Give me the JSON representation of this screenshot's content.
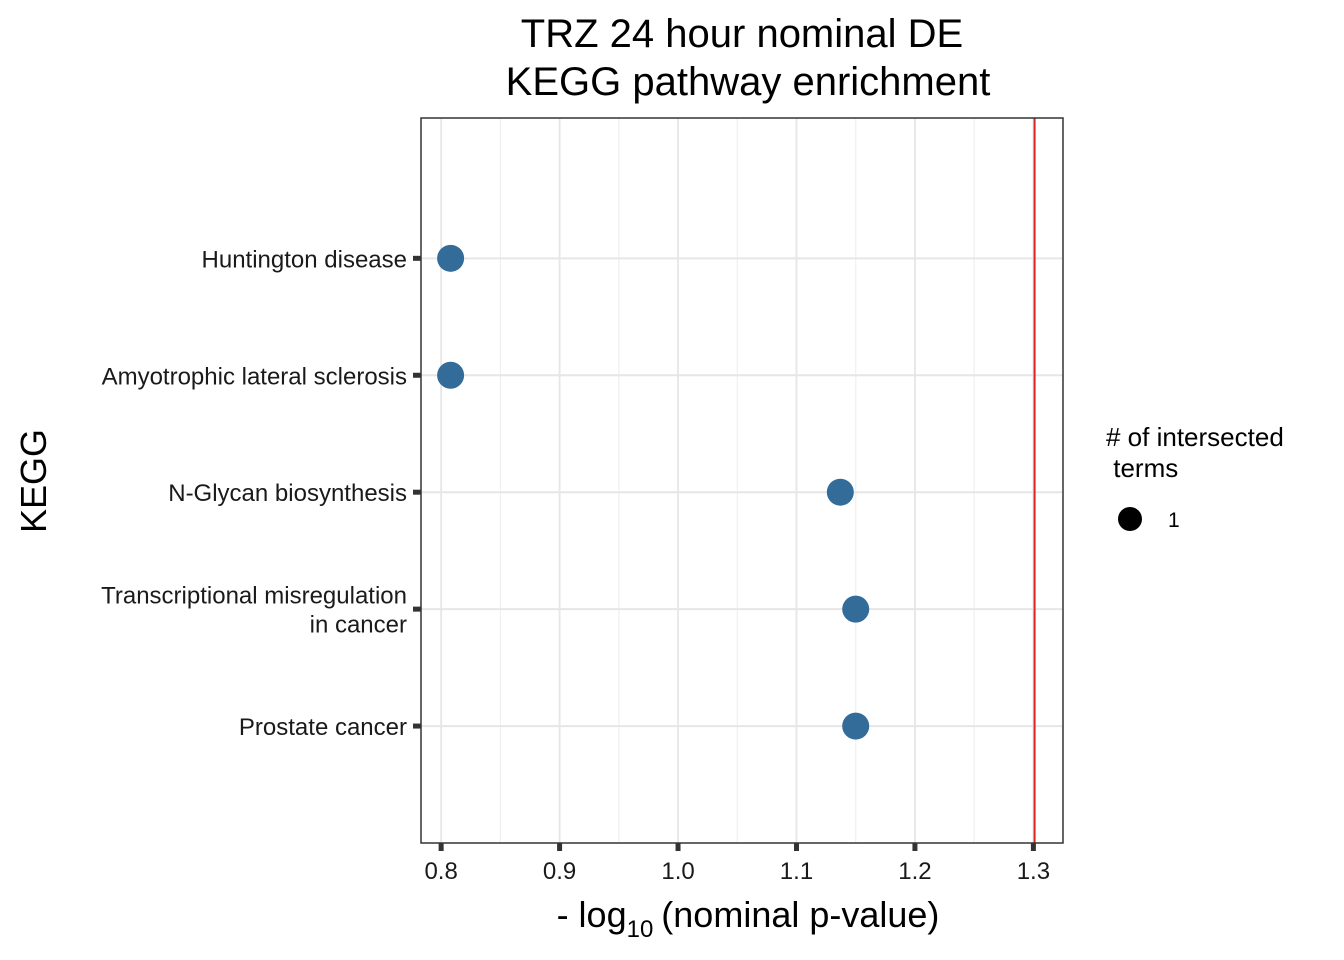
{
  "chart_data": {
    "type": "scatter",
    "title_lines": [
      "TRZ 24 hour nominal DE",
      "KEGG pathway enrichment"
    ],
    "xlabel_prefix": "- log",
    "xlabel_subscript": "10",
    "xlabel_paren": "(nominal p-value)",
    "ylabel": "KEGG",
    "xlim": [
      0.783,
      1.325
    ],
    "x_ticks": [
      0.8,
      0.9,
      1.0,
      1.1,
      1.2,
      1.3
    ],
    "x_tick_labels": [
      "0.8",
      "0.9",
      "1.0",
      "1.1",
      "1.2",
      "1.3"
    ],
    "categories": [
      [
        "Huntington disease"
      ],
      [
        "Amyotrophic lateral sclerosis"
      ],
      [
        "N-Glycan biosynthesis"
      ],
      [
        "Transcriptional misregulation",
        "in cancer"
      ],
      [
        "Prostate cancer"
      ]
    ],
    "values": [
      0.808,
      0.808,
      1.137,
      1.15,
      1.15
    ],
    "point_color": "#336b99",
    "reference_line": {
      "x": 1.301,
      "color": "#dd2222"
    },
    "grid": true,
    "legend": {
      "title_lines": [
        "# of intersected",
        " terms"
      ],
      "entries": [
        "1"
      ],
      "placement": "right"
    }
  }
}
